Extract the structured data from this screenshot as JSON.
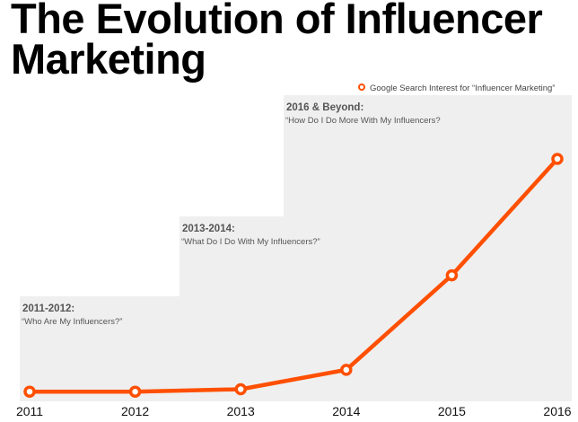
{
  "chart_data": {
    "type": "line",
    "title": "The Evolution of Influencer Marketing",
    "xlabel": "",
    "ylabel": "",
    "categories": [
      "2011",
      "2012",
      "2013",
      "2014",
      "2015",
      "2016"
    ],
    "series": [
      {
        "name": "Google Search Interest for “Influencer Marketing”",
        "values": [
          4,
          4,
          5,
          13,
          52,
          100
        ],
        "color": "#ff4f00"
      }
    ],
    "ylim": [
      0,
      100
    ],
    "grid": false,
    "legend_position": "top-right",
    "eras": [
      {
        "label": "2011-2012:",
        "question": "“Who Are My Influencers?”",
        "start_year": 2011
      },
      {
        "label": "2013-2014:",
        "question": "“What Do I Do With My Influencers?”",
        "start_year": 2013
      },
      {
        "label": "2016 & Beyond:",
        "question": "“How Do I Do More With My Influencers?",
        "start_year": 2014
      }
    ],
    "band_color": "#efefef"
  }
}
